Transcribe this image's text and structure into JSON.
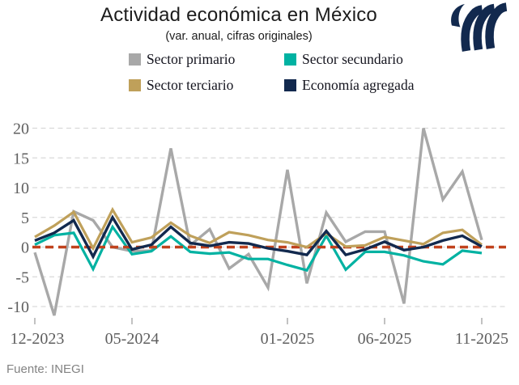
{
  "header": {
    "title": "Actividad económica en México",
    "subtitle": "(var. anual, cifras originales)"
  },
  "source": "Fuente: INEGI",
  "logo": {
    "name": "brand-mark",
    "color": "#12294e"
  },
  "chart_data": {
    "type": "line",
    "title": "Actividad económica en México",
    "subtitle": "(var. anual, cifras originales)",
    "source": "Fuente: INEGI",
    "x": [
      "12-2023",
      "01-2024",
      "02-2024",
      "03-2024",
      "04-2024",
      "05-2024",
      "06-2024",
      "07-2024",
      "08-2024",
      "09-2024",
      "10-2024",
      "11-2024",
      "12-2024",
      "01-2025",
      "02-2025",
      "03-2025",
      "04-2025",
      "05-2025",
      "06-2025",
      "07-2025",
      "08-2025",
      "09-2025",
      "10-2025",
      "11-2025"
    ],
    "x_tick_labels": [
      "12-2023",
      "05-2024",
      "01-2025",
      "06-2025",
      "11-2025"
    ],
    "x_tick_indices": [
      0,
      5,
      13,
      18,
      23
    ],
    "y_ticks": [
      20,
      15,
      10,
      5,
      0,
      -5,
      -10
    ],
    "ylim": [
      -12.5,
      21.5
    ],
    "grid": "horizontal-dashed",
    "legend_position": "top",
    "zero_line": {
      "value": 0,
      "color": "#c0421d",
      "style": "dashed"
    },
    "series": [
      {
        "name": "Sector primario",
        "color": "#a8a8a8",
        "values": [
          -0.9,
          -11.5,
          6.0,
          4.5,
          0.0,
          -0.7,
          -0.6,
          16.6,
          0.3,
          3.0,
          -3.6,
          -1.2,
          -6.8,
          13.0,
          -6.1,
          5.8,
          0.9,
          2.6,
          2.6,
          -9.5,
          20.0,
          8.0,
          12.7,
          1.2
        ]
      },
      {
        "name": "Sector secundario",
        "color": "#00b2a2",
        "values": [
          0.4,
          2.0,
          2.4,
          -3.7,
          3.4,
          -1.2,
          -0.7,
          1.8,
          -0.8,
          -1.1,
          -0.9,
          -2.0,
          -2.0,
          -3.0,
          -3.9,
          1.9,
          -3.8,
          -0.8,
          -0.8,
          -1.4,
          -2.4,
          -2.9,
          -0.6,
          -1.0
        ]
      },
      {
        "name": "Sector terciario",
        "color": "#bfa05a",
        "values": [
          1.7,
          3.6,
          5.9,
          -0.2,
          6.3,
          0.8,
          1.6,
          4.1,
          1.9,
          0.7,
          2.5,
          2.0,
          1.2,
          0.8,
          0.0,
          2.3,
          0.1,
          0.3,
          1.7,
          1.1,
          0.5,
          2.4,
          2.9,
          0.4
        ]
      },
      {
        "name": "Economía agregada",
        "color": "#12294e",
        "values": [
          1.1,
          2.4,
          4.5,
          -1.6,
          5.0,
          -0.4,
          0.4,
          3.4,
          0.7,
          0.2,
          0.8,
          0.6,
          -0.2,
          -0.7,
          -1.3,
          2.7,
          -1.3,
          -0.4,
          0.9,
          -0.5,
          0.0,
          1.1,
          1.9,
          0.1
        ]
      }
    ]
  }
}
